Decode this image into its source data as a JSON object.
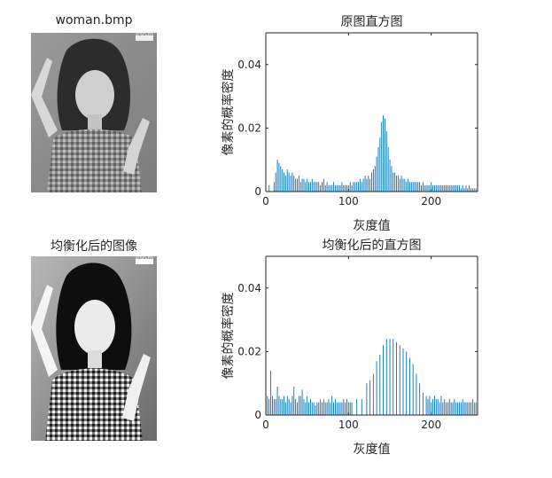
{
  "images": [
    {
      "title": "woman.bmp",
      "corner_text": "©SD-03",
      "contrast": 0.65
    },
    {
      "title": "均衡化后的图像",
      "corner_text": "©SD-03",
      "contrast": 1.0
    }
  ],
  "colors": {
    "bar": "#0072BD",
    "axis": "#262626"
  },
  "chart_data": [
    {
      "type": "bar",
      "title": "原图直方图",
      "xlabel": "灰度值",
      "ylabel": "像素的概率密度",
      "xlim": [
        0,
        256
      ],
      "ylim": [
        0,
        0.05
      ],
      "xticks": [
        "0",
        "100",
        "200"
      ],
      "yticks": [
        "0",
        "0.02",
        "0.04"
      ],
      "x": [
        4,
        10,
        12,
        14,
        16,
        18,
        20,
        22,
        24,
        26,
        28,
        30,
        32,
        34,
        36,
        38,
        40,
        42,
        44,
        46,
        48,
        50,
        52,
        54,
        56,
        58,
        60,
        62,
        64,
        66,
        68,
        70,
        72,
        74,
        76,
        78,
        80,
        82,
        84,
        86,
        88,
        90,
        92,
        94,
        96,
        98,
        100,
        102,
        104,
        106,
        108,
        110,
        112,
        114,
        116,
        118,
        120,
        122,
        124,
        126,
        128,
        130,
        132,
        134,
        136,
        138,
        140,
        142,
        144,
        146,
        148,
        150,
        152,
        154,
        156,
        158,
        160,
        162,
        164,
        166,
        168,
        170,
        172,
        174,
        176,
        178,
        180,
        182,
        184,
        186,
        188,
        190,
        192,
        194,
        196,
        198,
        200,
        202,
        204,
        206,
        208,
        210,
        212,
        214,
        216,
        218,
        220,
        222,
        224,
        226,
        228,
        230,
        232,
        234,
        236,
        238,
        240,
        242,
        244,
        246,
        248,
        250,
        252,
        254,
        256
      ],
      "values": [
        0.002,
        0.003,
        0.006,
        0.01,
        0.009,
        0.008,
        0.007,
        0.006,
        0.005,
        0.007,
        0.006,
        0.005,
        0.006,
        0.005,
        0.004,
        0.004,
        0.005,
        0.003,
        0.004,
        0.004,
        0.003,
        0.004,
        0.003,
        0.003,
        0.004,
        0.003,
        0.003,
        0.003,
        0.003,
        0.002,
        0.003,
        0.004,
        0.002,
        0.003,
        0.002,
        0.002,
        0.002,
        0.003,
        0.002,
        0.002,
        0.002,
        0.002,
        0.003,
        0.002,
        0.002,
        0.002,
        0.002,
        0.003,
        0.002,
        0.003,
        0.003,
        0.003,
        0.003,
        0.004,
        0.003,
        0.004,
        0.005,
        0.004,
        0.005,
        0.004,
        0.006,
        0.007,
        0.008,
        0.011,
        0.014,
        0.017,
        0.022,
        0.024,
        0.023,
        0.019,
        0.014,
        0.01,
        0.008,
        0.006,
        0.006,
        0.005,
        0.005,
        0.004,
        0.005,
        0.004,
        0.004,
        0.003,
        0.004,
        0.003,
        0.003,
        0.003,
        0.003,
        0.003,
        0.003,
        0.003,
        0.002,
        0.003,
        0.002,
        0.002,
        0.002,
        0.002,
        0.003,
        0.002,
        0.002,
        0.002,
        0.002,
        0.002,
        0.002,
        0.002,
        0.002,
        0.002,
        0.002,
        0.002,
        0.002,
        0.002,
        0.002,
        0.002,
        0.002,
        0.002,
        0.001,
        0.002,
        0.001,
        0.002,
        0.001,
        0.002,
        0.001,
        0.001,
        0.001,
        0.001,
        0.007
      ]
    },
    {
      "type": "bar",
      "title": "均衡化后的直方图",
      "xlabel": "灰度值",
      "ylabel": "像素的概率密度",
      "xlim": [
        0,
        256
      ],
      "ylim": [
        0,
        0.05
      ],
      "xticks": [
        "0",
        "100",
        "200"
      ],
      "yticks": [
        "0",
        "0.02",
        "0.04"
      ],
      "x": [
        2,
        4,
        6,
        8,
        10,
        12,
        14,
        16,
        18,
        20,
        22,
        24,
        26,
        28,
        30,
        32,
        34,
        36,
        38,
        40,
        42,
        44,
        46,
        48,
        50,
        52,
        54,
        56,
        58,
        60,
        62,
        64,
        66,
        68,
        70,
        72,
        74,
        76,
        78,
        80,
        82,
        84,
        86,
        88,
        90,
        92,
        94,
        96,
        98,
        100,
        102,
        104,
        110,
        116,
        122,
        126,
        130,
        134,
        138,
        142,
        146,
        150,
        154,
        158,
        162,
        166,
        170,
        174,
        178,
        182,
        186,
        190,
        194,
        196,
        198,
        200,
        202,
        204,
        206,
        208,
        210,
        212,
        214,
        216,
        218,
        220,
        222,
        224,
        226,
        228,
        230,
        232,
        234,
        236,
        238,
        240,
        242,
        244,
        246,
        248,
        250,
        252,
        254,
        256
      ],
      "values": [
        0.006,
        0.005,
        0.014,
        0.006,
        0.005,
        0.005,
        0.009,
        0.006,
        0.005,
        0.005,
        0.006,
        0.004,
        0.006,
        0.005,
        0.004,
        0.006,
        0.009,
        0.005,
        0.004,
        0.006,
        0.006,
        0.008,
        0.005,
        0.004,
        0.006,
        0.004,
        0.005,
        0.004,
        0.004,
        0.003,
        0.004,
        0.004,
        0.005,
        0.004,
        0.005,
        0.004,
        0.004,
        0.005,
        0.004,
        0.006,
        0.004,
        0.005,
        0.004,
        0.004,
        0.004,
        0.004,
        0.005,
        0.004,
        0.005,
        0.004,
        0.004,
        0.004,
        0.005,
        0.005,
        0.01,
        0.011,
        0.013,
        0.017,
        0.019,
        0.022,
        0.024,
        0.024,
        0.024,
        0.023,
        0.022,
        0.021,
        0.02,
        0.018,
        0.016,
        0.013,
        0.01,
        0.007,
        0.006,
        0.005,
        0.006,
        0.004,
        0.005,
        0.006,
        0.005,
        0.005,
        0.004,
        0.006,
        0.004,
        0.005,
        0.004,
        0.004,
        0.005,
        0.004,
        0.004,
        0.005,
        0.004,
        0.004,
        0.004,
        0.004,
        0.005,
        0.004,
        0.004,
        0.004,
        0.004,
        0.004,
        0.005,
        0.004,
        0.004,
        0.004
      ]
    }
  ]
}
